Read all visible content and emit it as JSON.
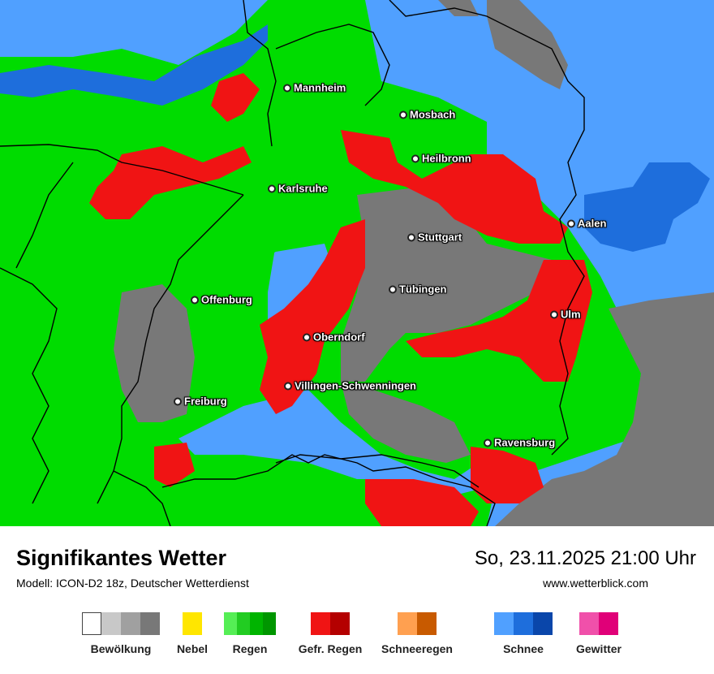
{
  "map": {
    "cities": [
      {
        "id": "mannheim",
        "name": "Mannheim"
      },
      {
        "id": "mosbach",
        "name": "Mosbach"
      },
      {
        "id": "heilbronn",
        "name": "Heilbronn"
      },
      {
        "id": "karlsruhe",
        "name": "Karlsruhe"
      },
      {
        "id": "stuttgart",
        "name": "Stuttgart"
      },
      {
        "id": "aalen",
        "name": "Aalen"
      },
      {
        "id": "tuebingen",
        "name": "Tübingen"
      },
      {
        "id": "offenburg",
        "name": "Offenburg"
      },
      {
        "id": "ulm",
        "name": "Ulm"
      },
      {
        "id": "oberndorf",
        "name": "Oberndorf"
      },
      {
        "id": "villingen",
        "name": "Villingen-Schwenningen"
      },
      {
        "id": "freiburg",
        "name": "Freiburg"
      },
      {
        "id": "ravensburg",
        "name": "Ravensburg"
      }
    ]
  },
  "footer": {
    "title": "Signifikantes Wetter",
    "model": "Modell: ICON-D2 18z, Deutscher Wetterdienst",
    "datetime": "So, 23.11.2025 21:00 Uhr",
    "website": "www.wetterblick.com"
  },
  "legend": [
    {
      "id": "bewoelkung",
      "label": "Bewölkung",
      "colors": [
        "#ffffff",
        "#c8c8c8",
        "#a0a0a0",
        "#787878"
      ]
    },
    {
      "id": "nebel",
      "label": "Nebel",
      "colors": [
        "#ffe600"
      ]
    },
    {
      "id": "regen",
      "label": "Regen",
      "colors": [
        "#55ee55",
        "#22cc22",
        "#00b400",
        "#009600"
      ]
    },
    {
      "id": "gefr-regen",
      "label": "Gefr. Regen",
      "colors": [
        "#f01414",
        "#b40000"
      ]
    },
    {
      "id": "schneeregen",
      "label": "Schneeregen",
      "colors": [
        "#ffa050",
        "#c85a00"
      ]
    },
    {
      "id": "schnee",
      "label": "Schnee",
      "colors": [
        "#50a0ff",
        "#1e6edc",
        "#0a46aa"
      ]
    },
    {
      "id": "gewitter",
      "label": "Gewitter",
      "colors": [
        "#f050aa",
        "#e00078"
      ]
    }
  ]
}
